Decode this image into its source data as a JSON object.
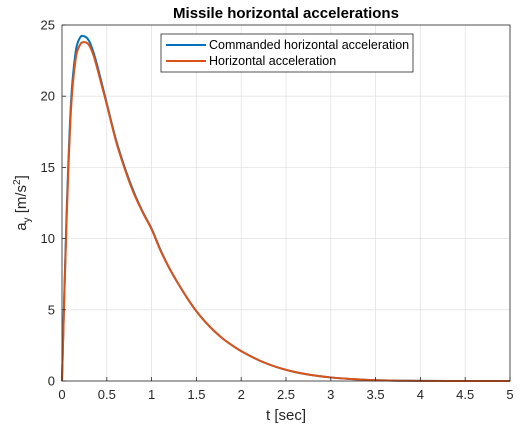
{
  "chart_data": {
    "type": "line",
    "title": "Missile horizontal accelerations",
    "xlabel": "t [sec]",
    "ylabel": {
      "base": "a",
      "sub": "y",
      "unit_open": " [m/s",
      "unit_sup": "2",
      "unit_close": "]"
    },
    "xlim": [
      0,
      5
    ],
    "ylim": [
      0,
      25
    ],
    "xticks": [
      "0",
      "0.5",
      "1",
      "1.5",
      "2",
      "2.5",
      "3",
      "3.5",
      "4",
      "4.5",
      "5"
    ],
    "yticks": [
      "0",
      "5",
      "10",
      "15",
      "20",
      "25"
    ],
    "grid": true,
    "legend_position": "top-right",
    "x": [
      0,
      0.05,
      0.1,
      0.15,
      0.2,
      0.25,
      0.3,
      0.35,
      0.4,
      0.5,
      0.6,
      0.7,
      0.8,
      0.9,
      1.0,
      1.1,
      1.2,
      1.3,
      1.4,
      1.5,
      1.6,
      1.7,
      1.8,
      1.9,
      2.0,
      2.2,
      2.4,
      2.6,
      2.8,
      3.0,
      3.2,
      3.4,
      3.6,
      3.8,
      4.0,
      4.5,
      5.0
    ],
    "series": [
      {
        "name": "Commanded horizontal acceleration",
        "color": "#0072BD",
        "values": [
          0,
          11.5,
          19.5,
          23.0,
          24.1,
          24.2,
          23.9,
          23.1,
          22.0,
          19.5,
          17.0,
          15.0,
          13.3,
          11.9,
          10.7,
          9.2,
          7.9,
          6.8,
          5.8,
          4.9,
          4.15,
          3.5,
          2.95,
          2.5,
          2.1,
          1.45,
          0.97,
          0.63,
          0.4,
          0.25,
          0.15,
          0.08,
          0.04,
          0.02,
          0.01,
          0.0,
          0.0
        ]
      },
      {
        "name": "Horizontal acceleration",
        "color": "#D95319",
        "values": [
          0,
          11.0,
          19.0,
          22.5,
          23.6,
          23.8,
          23.6,
          22.9,
          21.8,
          19.4,
          16.9,
          14.9,
          13.2,
          11.85,
          10.65,
          9.15,
          7.9,
          6.8,
          5.8,
          4.9,
          4.15,
          3.5,
          2.95,
          2.5,
          2.1,
          1.45,
          0.97,
          0.63,
          0.4,
          0.25,
          0.15,
          0.08,
          0.04,
          0.02,
          0.01,
          0.0,
          0.0
        ]
      }
    ]
  }
}
